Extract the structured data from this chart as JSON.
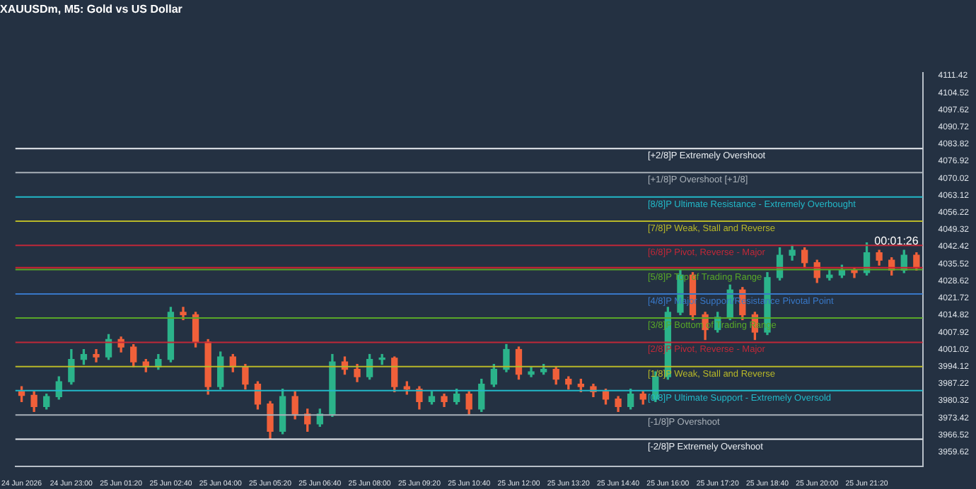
{
  "chart_data": {
    "type": "candlestick",
    "title": "XAUUSDm, M5: Gold vs US Dollar",
    "categories": [
      "24 Jun 2026",
      null,
      null,
      null,
      "24 Jun 23:00",
      null,
      null,
      null,
      "25 Jun 01:20",
      null,
      null,
      null,
      "25 Jun 02:40",
      null,
      null,
      null,
      "25 Jun 04:00",
      null,
      null,
      null,
      "25 Jun 05:20",
      null,
      null,
      null,
      "25 Jun 06:40",
      null,
      null,
      null,
      "25 Jun 08:00",
      null,
      null,
      null,
      "25 Jun 09:20",
      null,
      null,
      null,
      "25 Jun 10:40",
      null,
      null,
      null,
      "25 Jun 12:00",
      null,
      null,
      null,
      "25 Jun 13:20",
      null,
      null,
      null,
      "25 Jun 14:40",
      null,
      null,
      null,
      "25 Jun 16:00",
      null,
      null,
      null,
      "25 Jun 17:20",
      null,
      null,
      null,
      "25 Jun 18:40",
      null,
      null,
      null,
      "25 Jun 20:00",
      null,
      null,
      null,
      "25 Jun 21:20",
      null,
      null,
      null,
      null
    ],
    "ohlc": [
      [
        3984,
        3986,
        3980,
        3982.5
      ],
      [
        3982.5,
        3984,
        3976,
        3978
      ],
      [
        3978,
        3983,
        3977,
        3982
      ],
      [
        3982,
        3990,
        3981,
        3988
      ],
      [
        3988,
        4001,
        3987,
        3997
      ],
      [
        3997,
        4001,
        3995,
        3999
      ],
      [
        3999,
        4001,
        3996,
        3998
      ],
      [
        3998,
        4007,
        3997,
        4005
      ],
      [
        4005,
        4006,
        4000,
        4002
      ],
      [
        4002,
        4003,
        3994,
        3996
      ],
      [
        3996,
        3997,
        3992,
        3994
      ],
      [
        3994,
        3999,
        3993,
        3997
      ],
      [
        3997,
        4018,
        3996,
        4016
      ],
      [
        4016,
        4018,
        4013,
        4015
      ],
      [
        4015,
        4016,
        4002,
        4004
      ],
      [
        4004,
        4005,
        3983,
        3986
      ],
      [
        3986,
        4000,
        3985,
        3998
      ],
      [
        3998,
        3999,
        3992,
        3994
      ],
      [
        3994,
        3995,
        3985,
        3987
      ],
      [
        3987,
        3988,
        3977,
        3979
      ],
      [
        3979,
        3980,
        3965,
        3968
      ],
      [
        3968,
        3985,
        3967,
        3982
      ],
      [
        3982,
        3984,
        3973,
        3975
      ],
      [
        3975,
        3977,
        3968,
        3971
      ],
      [
        3971,
        3977,
        3970,
        3975
      ],
      [
        3975,
        3999,
        3974,
        3996
      ],
      [
        3996,
        3998,
        3991,
        3993
      ],
      [
        3993,
        3995,
        3988,
        3990
      ],
      [
        3990,
        3999,
        3989,
        3997
      ],
      [
        3997,
        3999,
        3995,
        3997.5
      ],
      [
        3997.5,
        3998,
        3984,
        3986
      ],
      [
        3986,
        3988,
        3983,
        3985
      ],
      [
        3985,
        3986,
        3977,
        3980
      ],
      [
        3980,
        3984,
        3979,
        3982
      ],
      [
        3982,
        3983,
        3978,
        3980
      ],
      [
        3980,
        3985,
        3979,
        3983
      ],
      [
        3983,
        3984,
        3975,
        3977
      ],
      [
        3977,
        3989,
        3976,
        3987
      ],
      [
        3987,
        3995,
        3986,
        3993
      ],
      [
        3993,
        4003,
        3992,
        4001
      ],
      [
        4001,
        4002,
        3989,
        3991
      ],
      [
        3991,
        3994,
        3990,
        3992
      ],
      [
        3992,
        3995,
        3991,
        3993
      ],
      [
        3993,
        3994,
        3987,
        3989
      ],
      [
        3989,
        3990,
        3985,
        3987
      ],
      [
        3987,
        3989,
        3984,
        3986
      ],
      [
        3986,
        3987,
        3982,
        3984
      ],
      [
        3984,
        3985,
        3979,
        3981
      ],
      [
        3981,
        3982,
        3976,
        3978
      ],
      [
        3978,
        3985,
        3977,
        3983
      ],
      [
        3983,
        3984,
        3979,
        3981
      ],
      [
        3981,
        3992,
        3980,
        3990
      ],
      [
        3990,
        4018,
        3989,
        4016
      ],
      [
        4016,
        4033,
        4015,
        4031
      ],
      [
        4031,
        4032,
        4013,
        4015
      ],
      [
        4015,
        4016,
        4005,
        4009
      ],
      [
        4009,
        4016,
        4008,
        4014
      ],
      [
        4014,
        4027,
        4013,
        4025
      ],
      [
        4025,
        4026,
        4013,
        4015
      ],
      [
        4015,
        4016,
        4005,
        4008
      ],
      [
        4008,
        4032,
        4007,
        4030
      ],
      [
        4030,
        4042,
        4029,
        4039
      ],
      [
        4039,
        4043,
        4037,
        4041
      ],
      [
        4041,
        4042,
        4034,
        4036
      ],
      [
        4036,
        4037,
        4028,
        4030
      ],
      [
        4030,
        4033,
        4029,
        4031
      ],
      [
        4031,
        4035,
        4030,
        4033
      ],
      [
        4033,
        4034,
        4030,
        4032
      ],
      [
        4032,
        4044,
        4031,
        4040
      ],
      [
        4040,
        4041,
        4035,
        4037
      ],
      [
        4037,
        4038,
        4031,
        4033
      ],
      [
        4033,
        4041,
        4032,
        4039
      ],
      [
        4039,
        4040,
        4033,
        4034
      ]
    ],
    "ylim": [
      3954,
      4112.5
    ],
    "yticks": [
      3959.62,
      3966.52,
      3973.42,
      3980.32,
      3987.22,
      3994.12,
      4001.02,
      4007.92,
      4014.82,
      4021.72,
      4028.62,
      4035.52,
      4042.42,
      4049.32,
      4056.22,
      4063.12,
      4070.02,
      4076.92,
      4083.82,
      4090.72,
      4097.62,
      4104.52,
      4111.42
    ],
    "ref_lines": [
      {
        "axis": "y",
        "value": 4082.0,
        "label": "[+2/8]P Extremely Overshoot",
        "color": "#e8ecf0"
      },
      {
        "axis": "y",
        "value": 4072.3,
        "label": "[+1/8]P Overshoot [+1/8]",
        "color": "#a8b0b8"
      },
      {
        "axis": "y",
        "value": 4062.5,
        "label": "[8/8]P Ultimate Resistance - Extremely Overbought",
        "color": "#22b8c8"
      },
      {
        "axis": "y",
        "value": 4052.7,
        "label": "[7/8]P Weak, Stall and Reverse",
        "color": "#b8b828"
      },
      {
        "axis": "y",
        "value": 4043.0,
        "label": "[6/8]P Pivot, Reverse - Major",
        "color": "#c02838"
      },
      {
        "axis": "y",
        "value": 4033.2,
        "label": "[5/8]P Top of Trading Range",
        "color": "#58a828"
      },
      {
        "axis": "y",
        "value": 4023.4,
        "label": "[4/8]P Major Support/Resistance Pivotal Point",
        "color": "#3878c8"
      },
      {
        "axis": "y",
        "value": 4013.7,
        "label": "[3/8]P Bottom of Trading Range",
        "color": "#58a828"
      },
      {
        "axis": "y",
        "value": 4003.9,
        "label": "[2/8]P Pivot, Reverse - Major",
        "color": "#c02838"
      },
      {
        "axis": "y",
        "value": 3994.1,
        "label": "[1/8]P Weak, Stall and Reverse",
        "color": "#b8b828"
      },
      {
        "axis": "y",
        "value": 3984.4,
        "label": "[0/8]P Ultimate Support - Extremely Oversold",
        "color": "#22b8c8"
      },
      {
        "axis": "y",
        "value": 3974.6,
        "label": "[-1/8]P Overshoot",
        "color": "#a8b0b8"
      },
      {
        "axis": "y",
        "value": 3964.8,
        "label": "[-2/8]P Extremely Overshoot",
        "color": "#e8ecf0"
      },
      {
        "axis": "y",
        "value": 4034,
        "color": "#d02030"
      }
    ],
    "annotations": [
      "00:01:26"
    ],
    "grid": false,
    "legend": false
  }
}
